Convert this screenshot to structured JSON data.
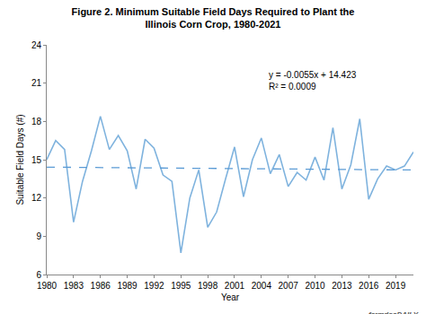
{
  "chart_data": {
    "type": "line",
    "title": "Figure 2. Minimum Suitable Field Days Required to Plant the\nIllinois Corn Crop, 1980-2021",
    "x_label": "Year",
    "y_label": "Suitable Field Days (#)",
    "x": [
      1980,
      1981,
      1982,
      1983,
      1984,
      1985,
      1986,
      1987,
      1988,
      1989,
      1990,
      1991,
      1992,
      1993,
      1994,
      1995,
      1996,
      1997,
      1998,
      1999,
      2000,
      2001,
      2002,
      2003,
      2004,
      2005,
      2006,
      2007,
      2008,
      2009,
      2010,
      2011,
      2012,
      2013,
      2014,
      2015,
      2016,
      2017,
      2018,
      2019,
      2020,
      2021
    ],
    "values": [
      15.0,
      16.5,
      15.8,
      10.1,
      13.3,
      15.7,
      18.4,
      15.8,
      16.9,
      15.7,
      12.7,
      16.6,
      15.9,
      13.8,
      13.3,
      7.7,
      12.0,
      14.2,
      9.7,
      10.9,
      13.5,
      16.0,
      12.1,
      15.0,
      16.7,
      13.9,
      15.4,
      12.9,
      14.0,
      13.4,
      15.2,
      13.4,
      17.5,
      12.7,
      14.6,
      18.2,
      11.9,
      13.5,
      14.5,
      14.2,
      14.5,
      15.6
    ],
    "color": "#7fb3de",
    "trendline": {
      "slope": -0.0055,
      "intercept": 14.423,
      "color": "#5b9bd5",
      "line_style": "dash",
      "equation": "y = -0.0055x + 14.423",
      "r_squared": "R² = 0.0009"
    },
    "xlim": [
      1980,
      2021
    ],
    "xticks": [
      1980,
      1983,
      1986,
      1989,
      1992,
      1995,
      1998,
      2001,
      2004,
      2007,
      2010,
      2013,
      2016,
      2019
    ],
    "ylim": [
      6,
      24
    ],
    "yticks": [
      6,
      9,
      12,
      15,
      18,
      21,
      24
    ],
    "grid": false,
    "source": "farmdocDAILY"
  }
}
